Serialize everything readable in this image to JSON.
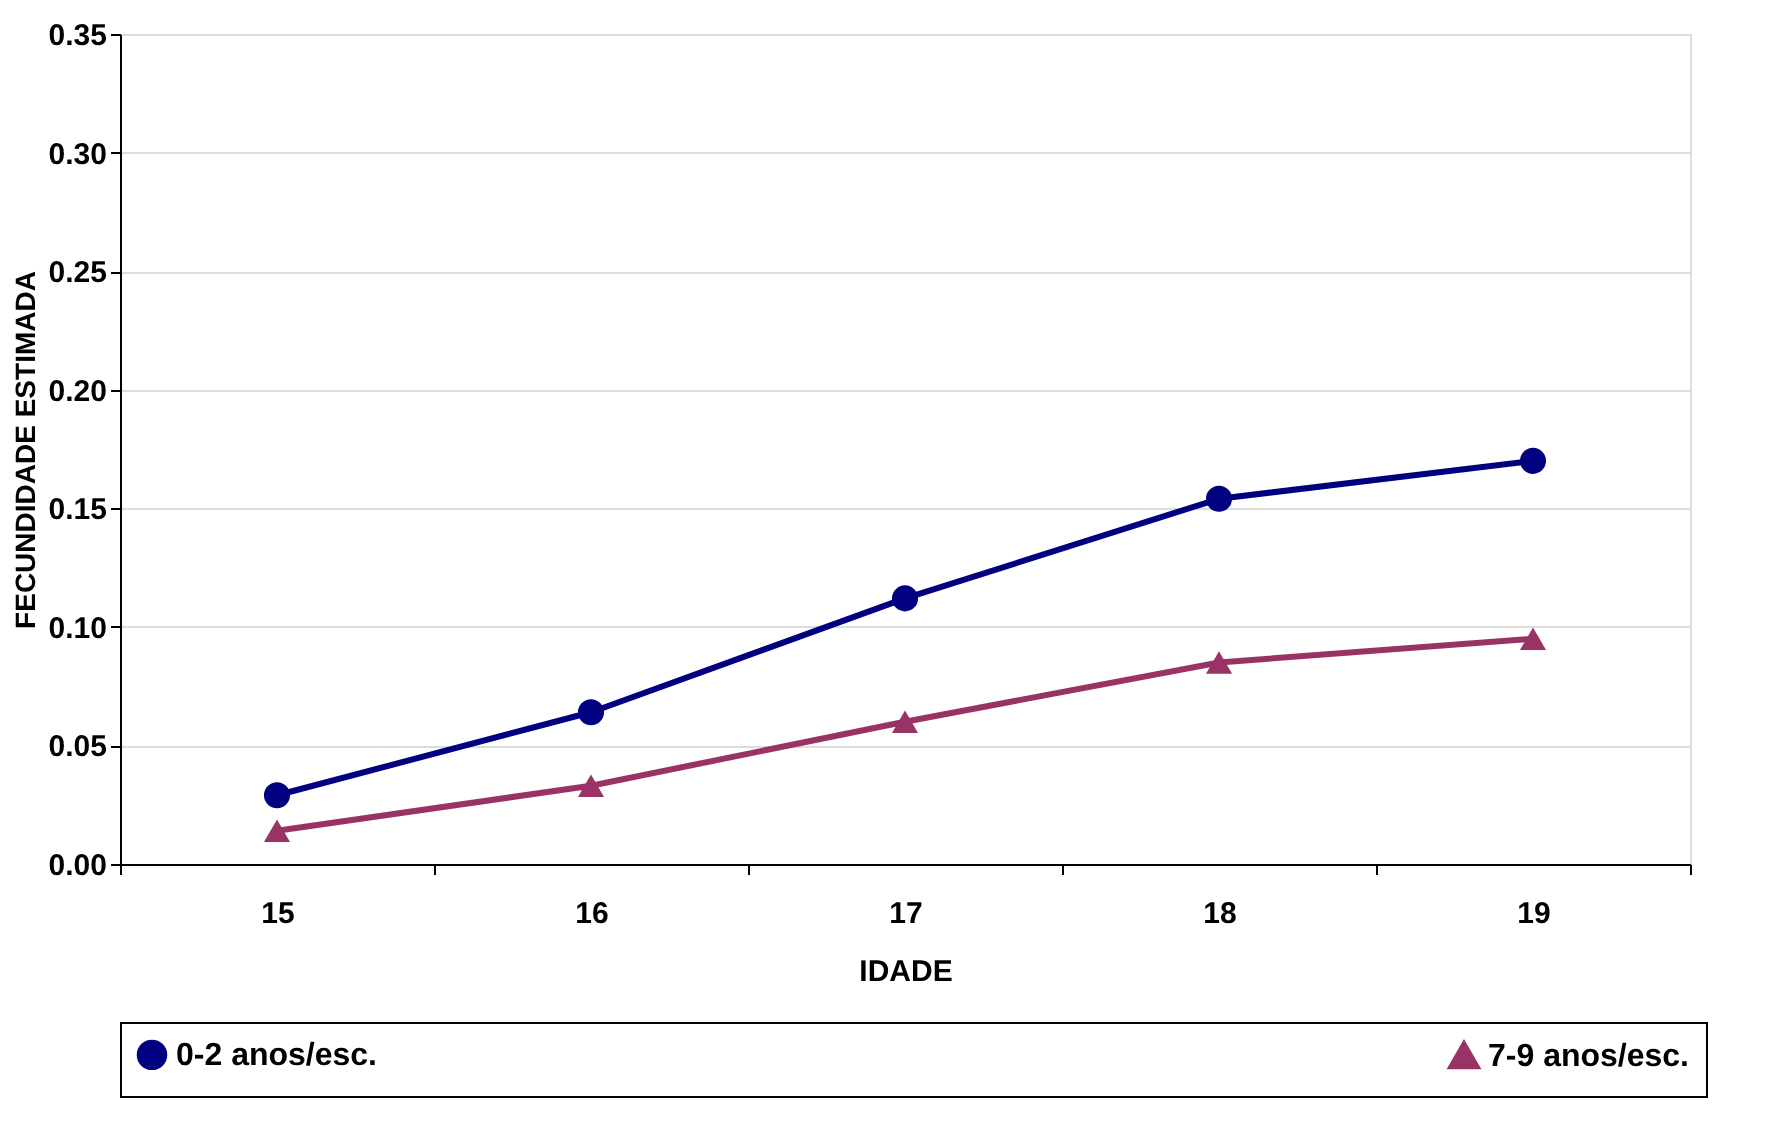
{
  "chart_data": {
    "type": "line",
    "xlabel": "IDADE",
    "ylabel": "FECUNDIDADE ESTIMADA",
    "categories": [
      "15",
      "16",
      "17",
      "18",
      "19"
    ],
    "series": [
      {
        "name": "0-2 anos/esc.",
        "color": "#000080",
        "marker": "circle",
        "values": [
          0.029,
          0.064,
          0.112,
          0.154,
          0.17
        ]
      },
      {
        "name": "7-9 anos/esc.",
        "color": "#993366",
        "marker": "triangle",
        "values": [
          0.014,
          0.033,
          0.06,
          0.085,
          0.095
        ]
      }
    ],
    "ylim": [
      0,
      0.35
    ],
    "yticks": [
      {
        "value": 0,
        "label": "0.00"
      },
      {
        "value": 0.05,
        "label": "0.05"
      },
      {
        "value": 0.1,
        "label": "0.10"
      },
      {
        "value": 0.15,
        "label": "0.15"
      },
      {
        "value": 0.2,
        "label": "0.20"
      },
      {
        "value": 0.25,
        "label": "0.25"
      },
      {
        "value": 0.3,
        "label": "0.30"
      },
      {
        "value": 0.35,
        "label": "0.35"
      }
    ],
    "grid": "y",
    "legend": "bottom",
    "line_style": "solid"
  }
}
